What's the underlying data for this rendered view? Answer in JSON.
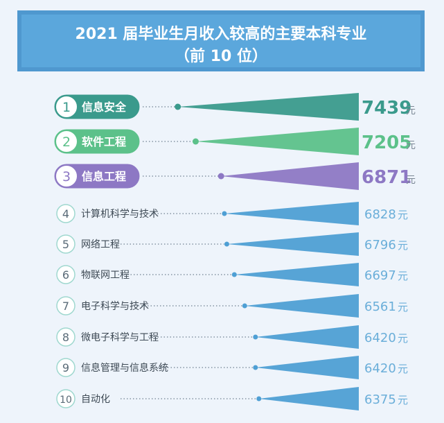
{
  "chart_data": {
    "type": "bar",
    "title": "2021 届毕业生月收入较高的主要本科专业",
    "subtitle": "（前 10 位）",
    "unit": "元",
    "categories": [
      "信息安全",
      "软件工程",
      "信息工程",
      "计算机科学与技术",
      "网络工程",
      "物联网工程",
      "电子科学与技术",
      "微电子科学与工程",
      "信息管理与信息系统",
      "自动化"
    ],
    "ranks": [
      "1",
      "2",
      "3",
      "4",
      "5",
      "6",
      "7",
      "8",
      "9",
      "10"
    ],
    "values": [
      7439,
      7205,
      6871,
      6828,
      6796,
      6697,
      6561,
      6420,
      6420,
      6375
    ],
    "value_labels": [
      "7439",
      "7205",
      "6871",
      "6828",
      "6796",
      "6697",
      "6561",
      "6420",
      "6420",
      "6375"
    ],
    "xlim": [
      6000,
      7500
    ],
    "grid": false,
    "legend": "none"
  },
  "colors": {
    "top1": "#3a9a8c",
    "top2": "#5cc18a",
    "top3": "#8d78c4",
    "rest": "#4e9fd4",
    "banner": "#5ba7dc",
    "dots": "#6e7f90"
  }
}
